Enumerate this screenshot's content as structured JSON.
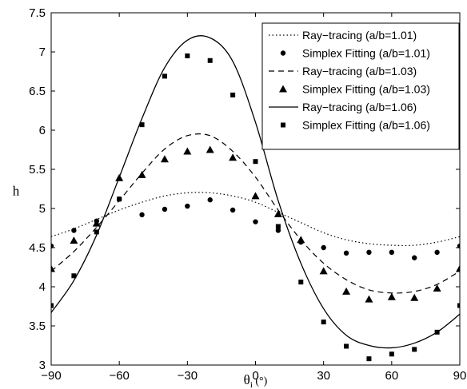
{
  "chart_data": {
    "type": "line",
    "xlabel": "θi (°)",
    "ylabel": "h",
    "xlim": [
      -90,
      90
    ],
    "ylim": [
      3,
      7.5
    ],
    "xticks": [
      -90,
      -60,
      -30,
      0,
      30,
      60,
      90
    ],
    "yticks": [
      3,
      3.5,
      4,
      4.5,
      5,
      5.5,
      6,
      6.5,
      7,
      7.5
    ],
    "grid": false,
    "legend_position": "top-right",
    "series": [
      {
        "name": "Ray−tracing (a/b=1.01)",
        "style": "dotted",
        "x": [
          -90,
          -80,
          -70,
          -60,
          -50,
          -40,
          -30,
          -20,
          -10,
          0,
          10,
          20,
          30,
          40,
          50,
          60,
          70,
          80,
          90
        ],
        "y": [
          4.64,
          4.74,
          4.86,
          4.98,
          5.08,
          5.16,
          5.2,
          5.2,
          5.16,
          5.08,
          4.95,
          4.82,
          4.69,
          4.6,
          4.55,
          4.53,
          4.53,
          4.57,
          4.64
        ]
      },
      {
        "name": "Simplex Fitting (a/b=1.01)",
        "style": "marker-circle",
        "x": [
          -90,
          -80,
          -70,
          -60,
          -50,
          -40,
          -30,
          -20,
          -10,
          0,
          10,
          20,
          30,
          40,
          50,
          60,
          70,
          80,
          90
        ],
        "y": [
          4.52,
          4.72,
          4.84,
          5.12,
          4.92,
          4.99,
          5.03,
          5.11,
          4.98,
          4.83,
          4.72,
          4.57,
          4.5,
          4.43,
          4.44,
          4.44,
          4.37,
          4.44,
          4.52
        ]
      },
      {
        "name": "Ray−tracing (a/b=1.03)",
        "style": "dashed",
        "x": [
          -90,
          -80,
          -70,
          -60,
          -50,
          -40,
          -30,
          -20,
          -10,
          0,
          10,
          20,
          30,
          40,
          50,
          60,
          70,
          80,
          90
        ],
        "y": [
          4.2,
          4.45,
          4.76,
          5.1,
          5.45,
          5.76,
          5.93,
          5.93,
          5.73,
          5.4,
          4.98,
          4.6,
          4.3,
          4.09,
          3.96,
          3.92,
          3.94,
          4.03,
          4.2
        ]
      },
      {
        "name": "Simplex Fitting (a/b=1.03)",
        "style": "marker-triangle",
        "x": [
          -90,
          -80,
          -70,
          -60,
          -50,
          -40,
          -30,
          -20,
          -10,
          0,
          10,
          20,
          30,
          40,
          50,
          60,
          70,
          80,
          90
        ],
        "y": [
          4.23,
          4.59,
          4.81,
          5.39,
          5.43,
          5.63,
          5.73,
          5.75,
          5.65,
          5.16,
          4.93,
          4.6,
          4.2,
          3.94,
          3.84,
          3.87,
          3.86,
          3.98,
          4.23
        ]
      },
      {
        "name": "Ray−tracing (a/b=1.06)",
        "style": "solid",
        "x": [
          -90,
          -80,
          -70,
          -60,
          -50,
          -40,
          -30,
          -20,
          -10,
          0,
          10,
          20,
          30,
          40,
          50,
          60,
          70,
          80,
          90
        ],
        "y": [
          3.67,
          4.08,
          4.66,
          5.4,
          6.15,
          6.8,
          7.15,
          7.18,
          6.88,
          6.1,
          5.1,
          4.3,
          3.72,
          3.38,
          3.25,
          3.22,
          3.28,
          3.42,
          3.65
        ]
      },
      {
        "name": "Simplex Fitting (a/b=1.06)",
        "style": "marker-square",
        "x": [
          -90,
          -80,
          -70,
          -60,
          -50,
          -40,
          -30,
          -20,
          -10,
          0,
          10,
          20,
          30,
          40,
          50,
          60,
          70,
          80,
          90
        ],
        "y": [
          3.76,
          4.14,
          4.7,
          5.12,
          6.07,
          6.69,
          6.95,
          6.89,
          6.45,
          5.6,
          4.77,
          4.06,
          3.55,
          3.24,
          3.08,
          3.14,
          3.2,
          3.42,
          3.76
        ]
      }
    ]
  }
}
